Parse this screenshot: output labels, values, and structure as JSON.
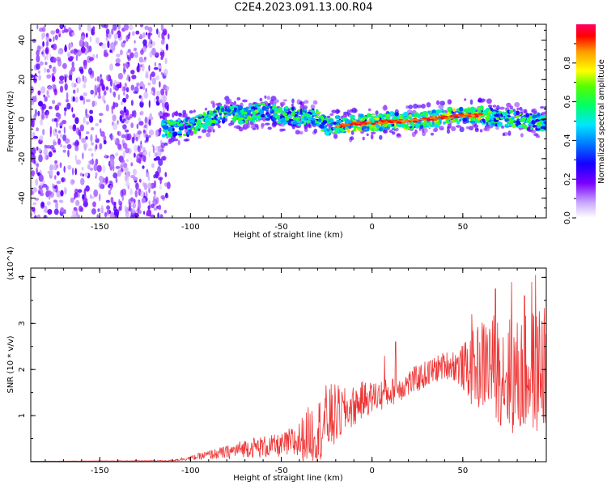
{
  "title": "C2E4.2023.091.13.00.R04",
  "chart_data": [
    {
      "type": "heatmap",
      "xlabel": "Height of straight line (km)",
      "ylabel": "Frequency (Hz)",
      "xlim": [
        -188,
        96
      ],
      "ylim": [
        -50,
        48
      ],
      "xticks": [
        -150,
        -100,
        -50,
        0,
        50
      ],
      "yticks": [
        -40,
        -20,
        0,
        20,
        40
      ],
      "colorbar": {
        "label": "Normalized spectral amplitude",
        "range": [
          0,
          1
        ],
        "ticks": [
          0.0,
          0.2,
          0.4,
          0.6,
          0.8
        ]
      },
      "noise_region_x": [
        -188,
        -112
      ],
      "signal_track": [
        {
          "x": -115,
          "y": -5
        },
        {
          "x": -100,
          "y": -4
        },
        {
          "x": -90,
          "y": 0
        },
        {
          "x": -80,
          "y": 3
        },
        {
          "x": -70,
          "y": 2
        },
        {
          "x": -60,
          "y": 4
        },
        {
          "x": -50,
          "y": 2
        },
        {
          "x": -40,
          "y": 1
        },
        {
          "x": -30,
          "y": 1
        },
        {
          "x": -25,
          "y": -4
        },
        {
          "x": -20,
          "y": -3
        },
        {
          "x": -15,
          "y": -3
        },
        {
          "x": -10,
          "y": -2
        },
        {
          "x": 0,
          "y": -2
        },
        {
          "x": 10,
          "y": -1
        },
        {
          "x": 20,
          "y": -1
        },
        {
          "x": 30,
          "y": 0
        },
        {
          "x": 40,
          "y": 1
        },
        {
          "x": 50,
          "y": 2
        },
        {
          "x": 60,
          "y": 2
        },
        {
          "x": 70,
          "y": 0
        },
        {
          "x": 80,
          "y": 0
        },
        {
          "x": 95,
          "y": -2
        }
      ]
    },
    {
      "type": "line",
      "xlabel": "Height of straight line (km)",
      "ylabel": "SNR (10 * v/v)",
      "y_multiplier": "(x10^4)",
      "xlim": [
        -188,
        96
      ],
      "ylim": [
        0,
        4.2
      ],
      "xticks": [
        -150,
        -100,
        -50,
        0,
        50
      ],
      "yticks": [
        1,
        2,
        3,
        4
      ],
      "series": [
        {
          "name": "SNR",
          "color": "#ee3333",
          "mean_x": [
            -188,
            -112,
            -100,
            -90,
            -80,
            -70,
            -60,
            -50,
            -45,
            -40,
            -35,
            -30,
            -25,
            -20,
            -15,
            -10,
            -5,
            0,
            5,
            10,
            15,
            20,
            25,
            30,
            35,
            40,
            45,
            50,
            55,
            60,
            65,
            70,
            75,
            80,
            85,
            90,
            96
          ],
          "mean_y": [
            0.01,
            0.02,
            0.08,
            0.15,
            0.2,
            0.3,
            0.32,
            0.35,
            0.4,
            0.45,
            0.6,
            0.65,
            0.9,
            1.0,
            1.1,
            1.2,
            1.35,
            1.4,
            1.45,
            1.5,
            1.6,
            1.7,
            1.8,
            1.9,
            2.0,
            2.1,
            2.1,
            2.05,
            2.0,
            2.1,
            2.15,
            2.0,
            1.9,
            1.8,
            1.9,
            2.0,
            2.1
          ],
          "spread_y": [
            0.0,
            0.01,
            0.05,
            0.1,
            0.15,
            0.2,
            0.25,
            0.25,
            0.35,
            0.45,
            0.6,
            0.7,
            0.8,
            0.7,
            0.5,
            0.45,
            0.4,
            0.35,
            0.35,
            0.3,
            0.3,
            0.3,
            0.3,
            0.3,
            0.3,
            0.3,
            0.35,
            0.5,
            0.8,
            1.0,
            1.1,
            1.2,
            1.3,
            1.3,
            1.3,
            1.4,
            1.5
          ],
          "peaks": [
            {
              "x": 7,
              "y": 2.3
            },
            {
              "x": 13,
              "y": 2.6
            },
            {
              "x": 55,
              "y": 3.2
            },
            {
              "x": 68,
              "y": 3.75
            },
            {
              "x": 77,
              "y": 3.9
            },
            {
              "x": 84,
              "y": 3.6
            },
            {
              "x": 88,
              "y": 3.9
            },
            {
              "x": 90,
              "y": 4.05
            }
          ]
        }
      ]
    }
  ]
}
